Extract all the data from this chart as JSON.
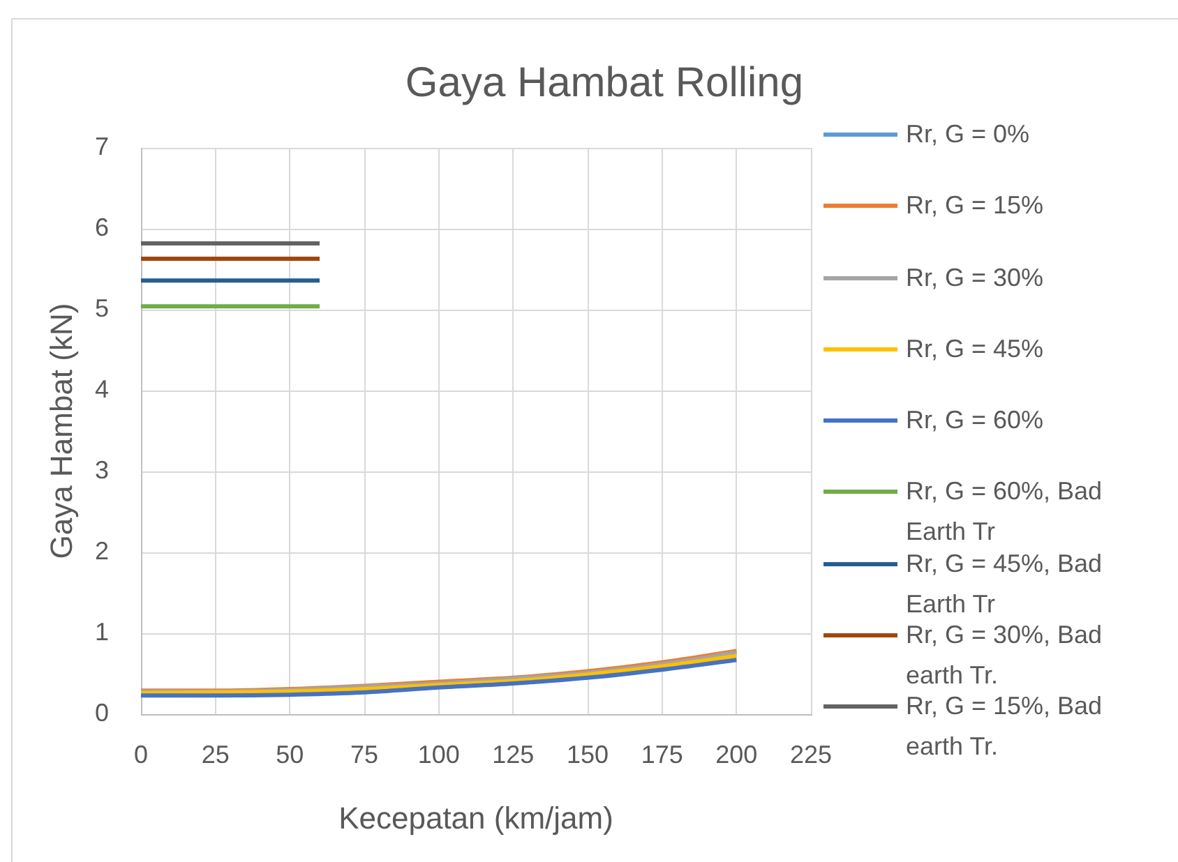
{
  "chart_data": {
    "type": "line",
    "title": "Gaya Hambat Rolling",
    "xlabel": "Kecepatan (km/jam)",
    "ylabel": "Gaya Hambat (kN)",
    "xlim": [
      0,
      225
    ],
    "xticks": [
      0,
      25,
      50,
      75,
      100,
      125,
      150,
      175,
      200,
      225
    ],
    "ylim": [
      0,
      7
    ],
    "yticks": [
      0,
      1,
      2,
      3,
      4,
      5,
      6,
      7
    ],
    "grid": true,
    "legend": "right",
    "marker": "none",
    "line_style": "solid",
    "series": [
      {
        "name": "Rr, G = 0%",
        "color": "#5b9bd5",
        "values": [
          null,
          null,
          null,
          null,
          null,
          null,
          null,
          null,
          null
        ]
      },
      {
        "name": "Rr, G = 15%",
        "color": "#ed7d31",
        "x": [
          0,
          25,
          50,
          75,
          100,
          125,
          150,
          175,
          200
        ],
        "values": [
          0.29,
          0.29,
          0.31,
          0.35,
          0.4,
          0.45,
          0.53,
          0.64,
          0.78
        ]
      },
      {
        "name": "Rr, G = 30%",
        "color": "#a5a5a5",
        "x": [
          0,
          25,
          50,
          75,
          100,
          125,
          150,
          175,
          200
        ],
        "values": [
          0.28,
          0.28,
          0.3,
          0.34,
          0.38,
          0.44,
          0.51,
          0.62,
          0.76
        ]
      },
      {
        "name": "Rr, G = 45%",
        "color": "#ffc000",
        "x": [
          0,
          25,
          50,
          75,
          100,
          125,
          150,
          175,
          200
        ],
        "values": [
          0.26,
          0.27,
          0.28,
          0.31,
          0.36,
          0.41,
          0.49,
          0.59,
          0.72
        ]
      },
      {
        "name": "Rr, G = 60%",
        "color": "#4472c4",
        "x": [
          0,
          25,
          50,
          75,
          100,
          125,
          150,
          175,
          200
        ],
        "values": [
          0.23,
          0.23,
          0.24,
          0.27,
          0.33,
          0.38,
          0.45,
          0.55,
          0.67
        ]
      },
      {
        "name": "Rr, G = 60%, Bad Earth Tr",
        "color": "#70ad47",
        "x": [
          0,
          20,
          40,
          60
        ],
        "values": [
          5.04,
          5.04,
          5.04,
          5.04
        ]
      },
      {
        "name": "Rr, G = 45%, Bad Earth Tr",
        "color": "#255e91",
        "x": [
          0,
          20,
          40,
          60
        ],
        "values": [
          5.36,
          5.36,
          5.36,
          5.36
        ]
      },
      {
        "name": "Rr, G = 30%, Bad earth Tr.",
        "color": "#9e480e",
        "x": [
          0,
          20,
          40,
          60
        ],
        "values": [
          5.63,
          5.63,
          5.63,
          5.63
        ]
      },
      {
        "name": "Rr, G = 15%, Bad earth Tr.",
        "color": "#636363",
        "x": [
          0,
          20,
          40,
          60
        ],
        "values": [
          5.82,
          5.82,
          5.82,
          5.82
        ]
      }
    ]
  }
}
